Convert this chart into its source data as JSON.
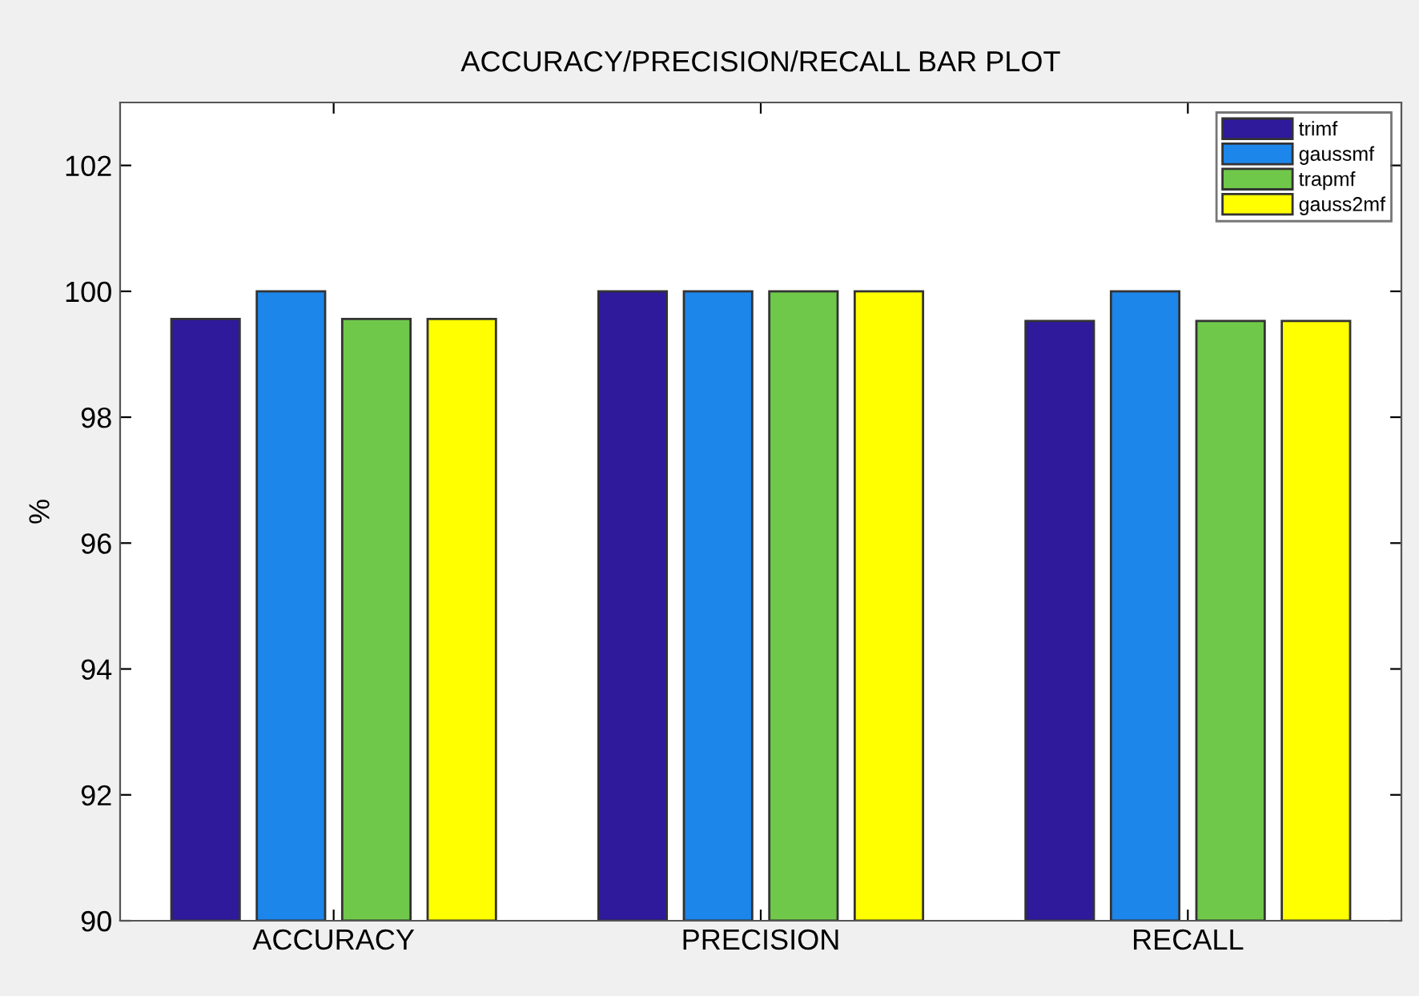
{
  "chart_data": {
    "type": "bar",
    "title": "ACCURACY/PRECISION/RECALL BAR PLOT",
    "ylabel": "%",
    "categories": [
      "ACCURACY",
      "PRECISION",
      "RECALL"
    ],
    "series": [
      {
        "name": "trimf",
        "color": "#2e1a9b",
        "values": [
          99.56,
          100,
          99.53
        ]
      },
      {
        "name": "gaussmf",
        "color": "#1c86ea",
        "values": [
          100,
          100,
          100
        ]
      },
      {
        "name": "trapmf",
        "color": "#70c84a",
        "values": [
          99.56,
          100,
          99.53
        ]
      },
      {
        "name": "gauss2mf",
        "color": "#ffff00",
        "values": [
          99.56,
          100,
          99.53
        ]
      }
    ],
    "ylim": [
      90,
      103
    ],
    "yticks": [
      90,
      92,
      94,
      96,
      98,
      100,
      102
    ],
    "grid": false,
    "legend": "top right"
  }
}
